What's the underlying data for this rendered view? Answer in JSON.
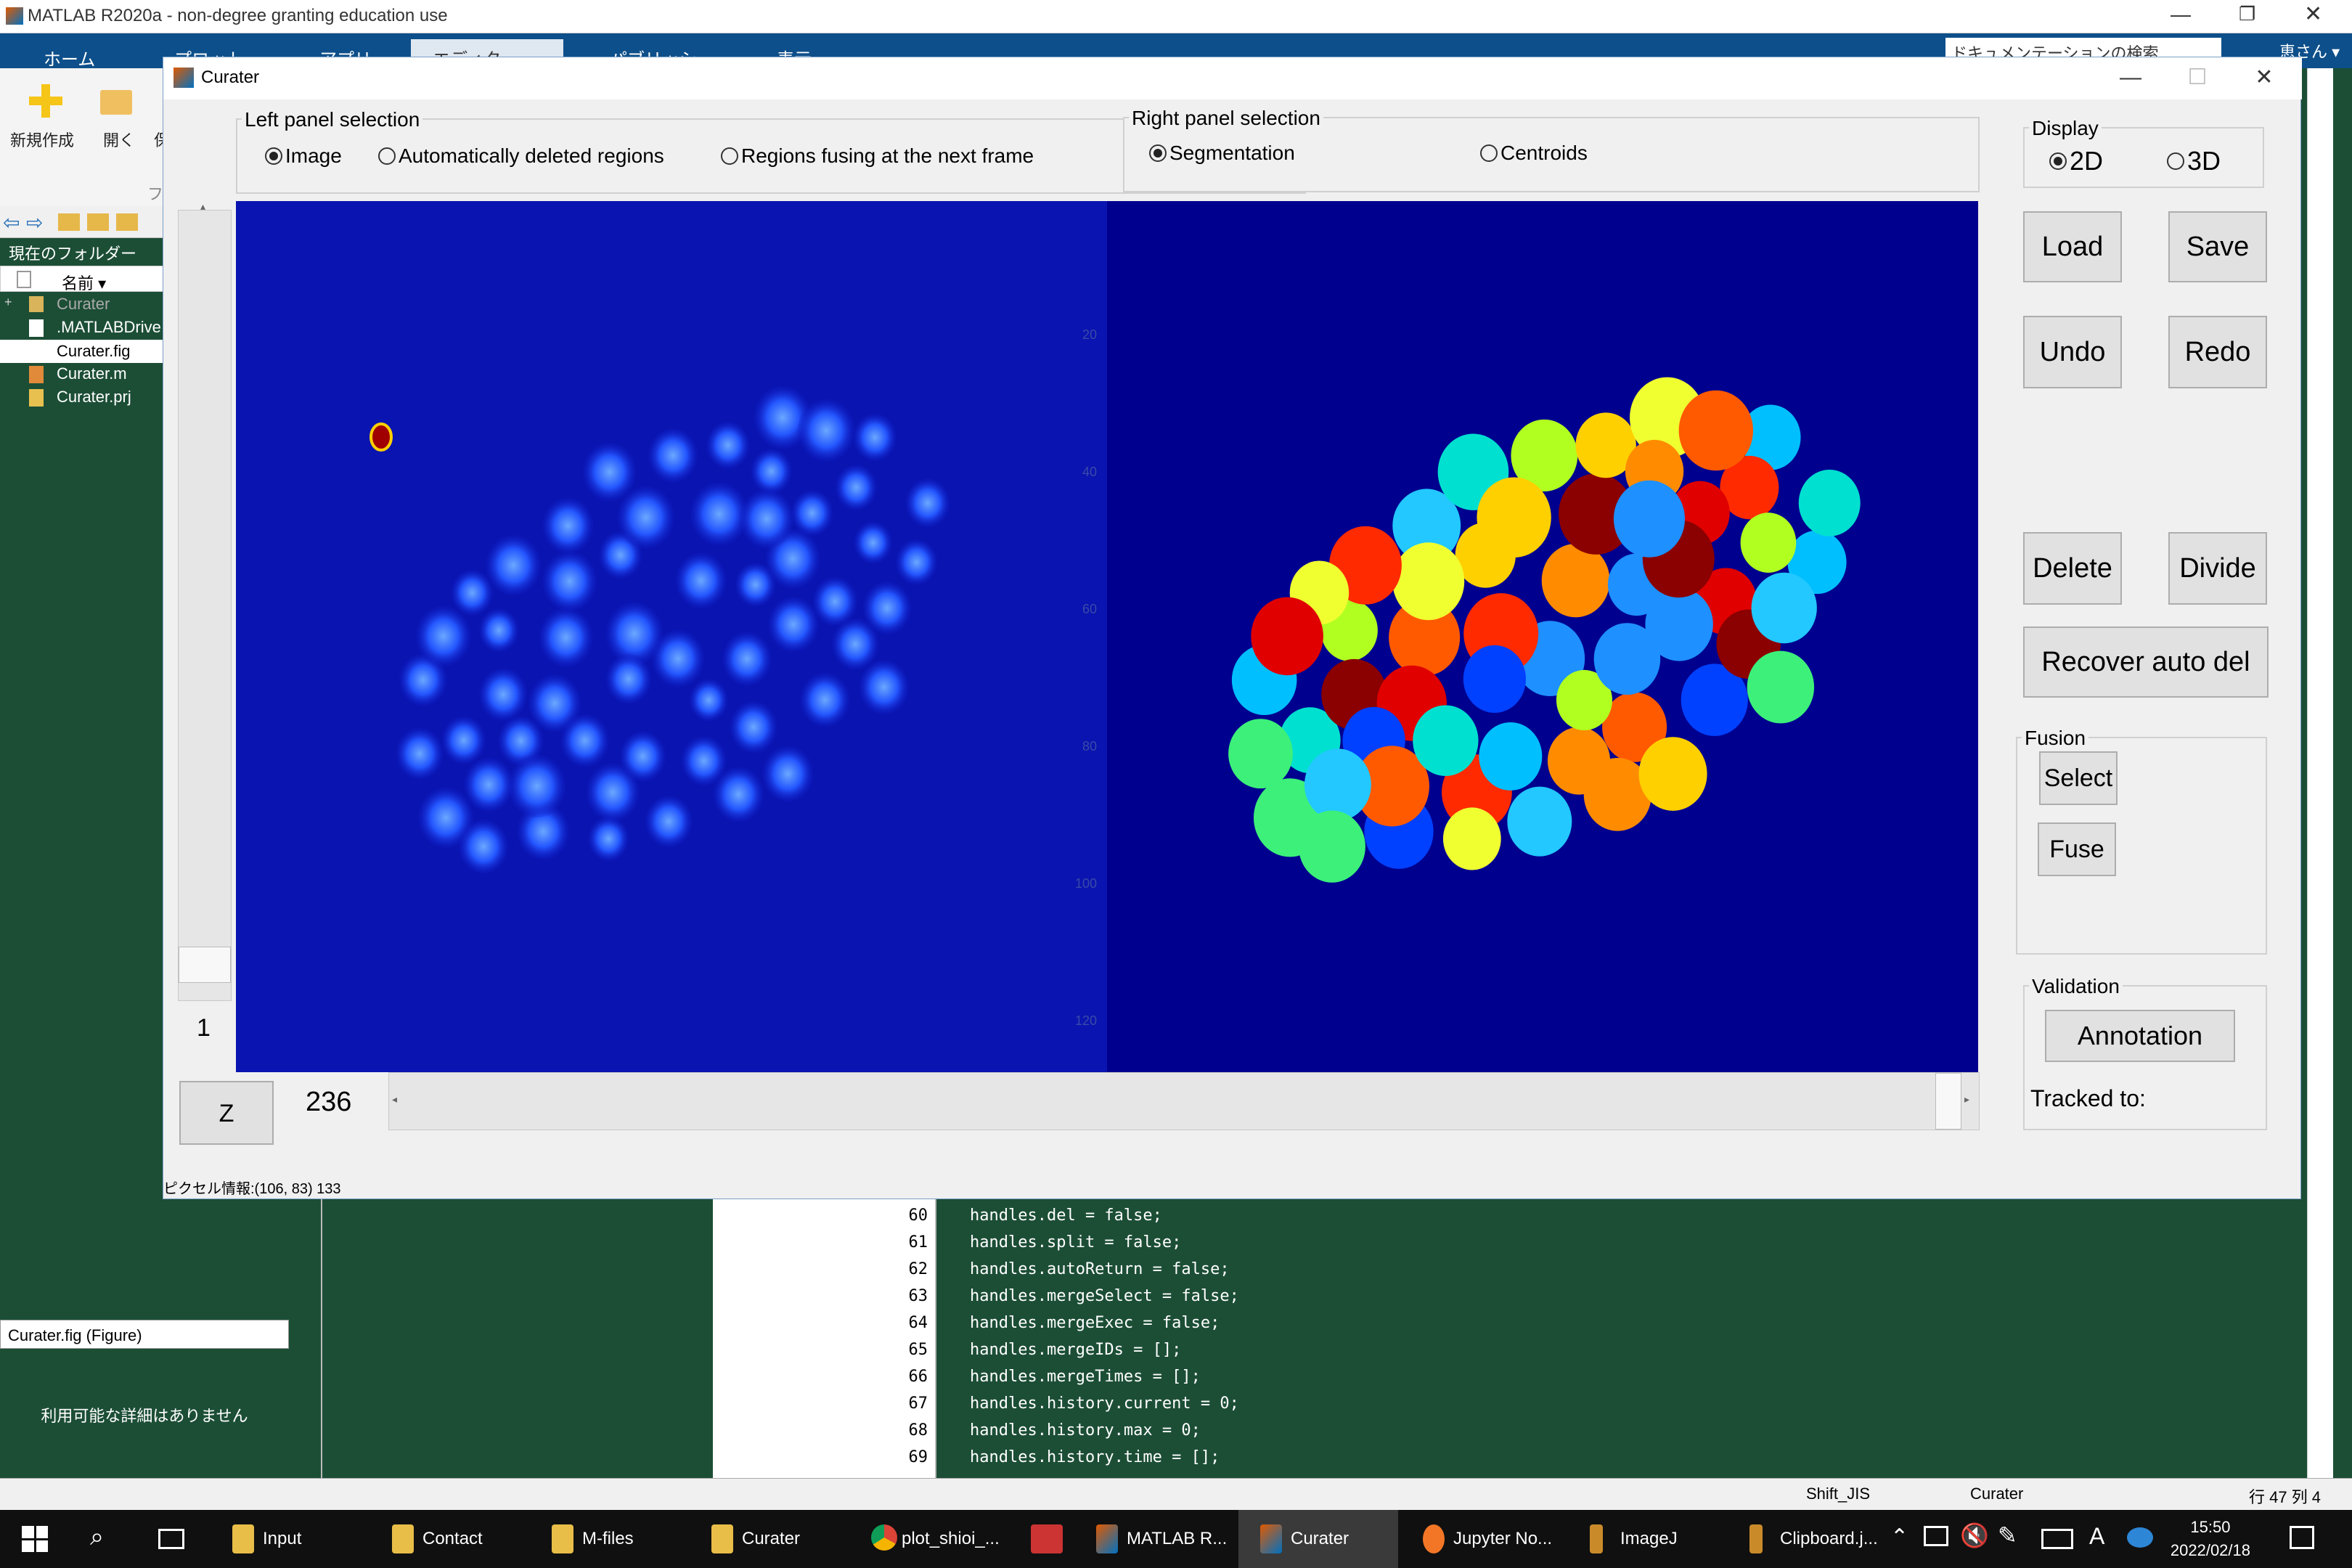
{
  "app": {
    "title": "MATLAB R2020a - non-degree granting education use"
  },
  "ribbon_tabs": [
    "ホーム",
    "プロット",
    "アプリ",
    "エディター",
    "パブリッシュ",
    "表示"
  ],
  "search_placeholder": "ドキュメンテーションの検索",
  "user": "恵さん ▾",
  "ribbon": {
    "new": "新規作成",
    "open": "開く",
    "save_partial": "保",
    "file_group": "ファ"
  },
  "folder": {
    "header": "現在のフォルダー",
    "col_name": "名前 ▾",
    "items": [
      "Curater",
      ".MATLABDrive",
      "Curater.fig",
      "Curater.m",
      "Curater.prj"
    ]
  },
  "details": {
    "header": "Curater.fig (Figure)",
    "empty": "利用可能な詳細はありません"
  },
  "editor": {
    "line_numbers": [
      "60",
      "61",
      "62",
      "63",
      "64",
      "65",
      "66",
      "67",
      "68",
      "69"
    ],
    "lines": [
      "handles.del = false;",
      "handles.split = false;",
      "handles.autoReturn = false;",
      "handles.mergeSelect = false;",
      "handles.mergeExec = false;",
      "handles.mergeIDs = [];",
      "handles.mergeTimes = [];",
      "handles.history.current = 0;",
      "handles.history.max = 0;",
      "handles.history.time = [];"
    ]
  },
  "status": {
    "encoding": "Shift_JIS",
    "file": "Curater",
    "position": "行 47 列 4"
  },
  "taskbar": {
    "items": [
      "Input",
      "Contact",
      "M-files",
      "Curater",
      "plot_shioi_...",
      "MATLAB R...",
      "Curater",
      "Jupyter No...",
      "ImageJ",
      "Clipboard.j..."
    ],
    "time": "15:50",
    "date": "2022/02/18"
  },
  "curater": {
    "title": "Curater",
    "left_panel": {
      "label": "Left panel selection",
      "options": [
        "Image",
        "Automatically deleted regions",
        "Regions fusing at the next frame"
      ],
      "selected": "Image"
    },
    "right_panel": {
      "label": "Right panel selection",
      "options": [
        "Segmentation",
        "Centroids"
      ],
      "selected": "Segmentation"
    },
    "display": {
      "label": "Display",
      "options": [
        "2D",
        "3D"
      ],
      "selected": "2D"
    },
    "buttons": {
      "load": "Load",
      "save": "Save",
      "undo": "Undo",
      "redo": "Redo",
      "delete": "Delete",
      "divide": "Divide",
      "recover": "Recover auto del"
    },
    "fusion": {
      "label": "Fusion",
      "select": "Select",
      "fuse": "Fuse"
    },
    "validation": {
      "label": "Validation",
      "annotation": "Annotation",
      "tracked": "Tracked to:"
    },
    "slice_value": "1",
    "z_button": "Z",
    "frame_value": "236",
    "axis_ticks": [
      "20",
      "40",
      "60",
      "80",
      "100",
      "120"
    ],
    "pixel_info": "ピクセル情報:(106, 83)  133"
  }
}
